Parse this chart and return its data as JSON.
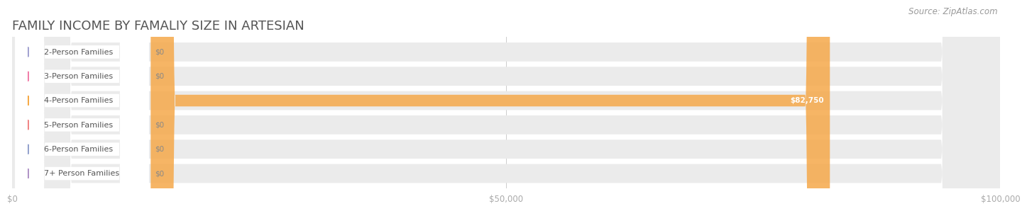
{
  "title": "FAMILY INCOME BY FAMALIY SIZE IN ARTESIAN",
  "source": "Source: ZipAtlas.com",
  "categories": [
    "2-Person Families",
    "3-Person Families",
    "4-Person Families",
    "5-Person Families",
    "6-Person Families",
    "7+ Person Families"
  ],
  "values": [
    0,
    0,
    82750,
    0,
    0,
    0
  ],
  "bar_colors": [
    "#a8a8cc",
    "#f080a0",
    "#f5a84a",
    "#f09090",
    "#98b4d8",
    "#b898cc"
  ],
  "dot_colors": [
    "#9898cc",
    "#f070a0",
    "#f5a030",
    "#f07878",
    "#8898c8",
    "#a888c0"
  ],
  "label_bg_colors": [
    "#f5f5fc",
    "#fce8ef",
    "#fff8f0",
    "#fce8e8",
    "#eaf0f8",
    "#f0eaf8"
  ],
  "row_bg_color": "#ebebeb",
  "white_pill_color": "#ffffff",
  "bar_value_labels": [
    "$0",
    "$0",
    "$82,750",
    "$0",
    "$0",
    "$0"
  ],
  "xlim_max": 100000,
  "xticks": [
    0,
    50000,
    100000
  ],
  "xtick_labels": [
    "$0",
    "$50,000",
    "$100,000"
  ],
  "background_color": "#ffffff",
  "title_color": "#555555",
  "source_color": "#999999",
  "label_color": "#555555",
  "title_fontsize": 13,
  "source_fontsize": 8.5,
  "label_fontsize": 8,
  "value_fontsize": 7.5
}
